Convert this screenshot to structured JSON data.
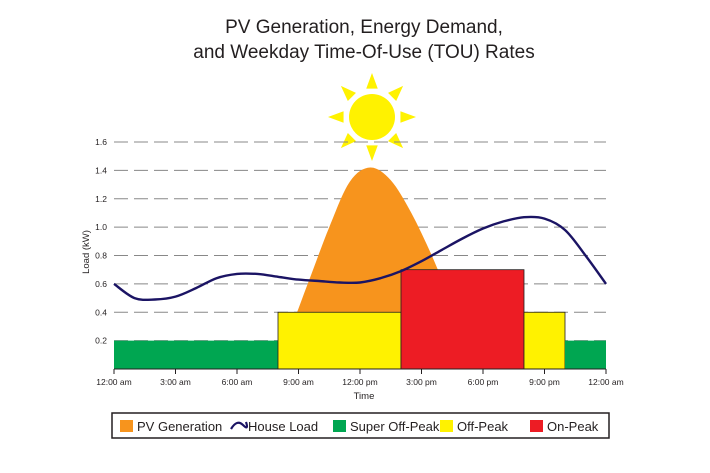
{
  "chart_data": {
    "type": "area",
    "title_lines": [
      "PV Generation, Energy Demand,",
      "and Weekday Time-Of-Use (TOU) Rates"
    ],
    "xlabel": "Time",
    "ylabel": "Load (kW)",
    "x_ticks": [
      {
        "hour": 0,
        "label": "12:00 am"
      },
      {
        "hour": 3,
        "label": "3:00 am"
      },
      {
        "hour": 6,
        "label": "6:00 am"
      },
      {
        "hour": 9,
        "label": "9:00 am"
      },
      {
        "hour": 12,
        "label": "12:00 pm"
      },
      {
        "hour": 15,
        "label": "3:00 pm"
      },
      {
        "hour": 18,
        "label": "6:00 pm"
      },
      {
        "hour": 21,
        "label": "9:00 pm"
      },
      {
        "hour": 24,
        "label": "12:00 am"
      }
    ],
    "y_ticks": [
      {
        "value": 0.2,
        "label": "0.2"
      },
      {
        "value": 0.4,
        "label": "0.4"
      },
      {
        "value": 0.6,
        "label": "0.6"
      },
      {
        "value": 0.8,
        "label": "0.8"
      },
      {
        "value": 1.0,
        "label": "1.0"
      },
      {
        "value": 1.2,
        "label": "1.2"
      },
      {
        "value": 1.4,
        "label": "1.4"
      },
      {
        "value": 1.6,
        "label": "1.6"
      }
    ],
    "xlim": [
      0,
      24
    ],
    "ylim": [
      0,
      1.6
    ],
    "grid": "horizontal-dashed",
    "tou_periods": [
      {
        "name": "Super Off-Peak",
        "start": 0,
        "end": 8,
        "rate_level": 0.2
      },
      {
        "name": "Off-Peak",
        "start": 8,
        "end": 14,
        "rate_level": 0.4
      },
      {
        "name": "On-Peak",
        "start": 14,
        "end": 20,
        "rate_level": 0.7
      },
      {
        "name": "Off-Peak",
        "start": 20,
        "end": 22,
        "rate_level": 0.4
      },
      {
        "name": "Super Off-Peak",
        "start": 22,
        "end": 24,
        "rate_level": 0.2
      }
    ],
    "series": [
      {
        "name": "PV Generation",
        "points": [
          [
            7.5,
            0
          ],
          [
            8.5,
            0.25
          ],
          [
            9.5,
            0.62
          ],
          [
            10.5,
            1.0
          ],
          [
            11.5,
            1.32
          ],
          [
            12.5,
            1.42
          ],
          [
            13.5,
            1.33
          ],
          [
            14.5,
            1.1
          ],
          [
            15.5,
            0.8
          ],
          [
            16.3,
            0.52
          ],
          [
            16.8,
            0.35
          ]
        ]
      },
      {
        "name": "House Load",
        "points": [
          [
            0,
            0.6
          ],
          [
            1,
            0.5
          ],
          [
            2,
            0.49
          ],
          [
            3,
            0.51
          ],
          [
            4,
            0.57
          ],
          [
            5,
            0.64
          ],
          [
            6,
            0.67
          ],
          [
            7,
            0.67
          ],
          [
            8,
            0.65
          ],
          [
            9,
            0.63
          ],
          [
            10,
            0.62
          ],
          [
            11,
            0.61
          ],
          [
            12,
            0.61
          ],
          [
            13,
            0.64
          ],
          [
            14,
            0.69
          ],
          [
            15,
            0.76
          ],
          [
            16,
            0.84
          ],
          [
            17,
            0.92
          ],
          [
            18,
            0.99
          ],
          [
            19,
            1.04
          ],
          [
            20,
            1.07
          ],
          [
            21,
            1.06
          ],
          [
            22,
            0.98
          ],
          [
            23,
            0.8
          ],
          [
            24,
            0.6
          ]
        ]
      }
    ],
    "legend": {
      "placement": "bottom",
      "items": [
        {
          "label": "PV Generation",
          "kind": "swatch",
          "color": "#f7941d"
        },
        {
          "label": "House Load",
          "kind": "line",
          "color": "#1b1464"
        },
        {
          "label": "Super Off-Peak",
          "kind": "swatch",
          "color": "#00a651"
        },
        {
          "label": "Off-Peak",
          "kind": "swatch",
          "color": "#fff200"
        },
        {
          "label": "On-Peak",
          "kind": "swatch",
          "color": "#ed1c24"
        }
      ]
    },
    "colors": {
      "pv": "#f7941d",
      "house_load": "#1b1464",
      "super_off_peak": "#00a651",
      "off_peak": "#fff200",
      "on_peak": "#ed1c24",
      "sun": "#fff200",
      "grid": "#888888"
    },
    "decoration_icon": "sun-icon"
  }
}
